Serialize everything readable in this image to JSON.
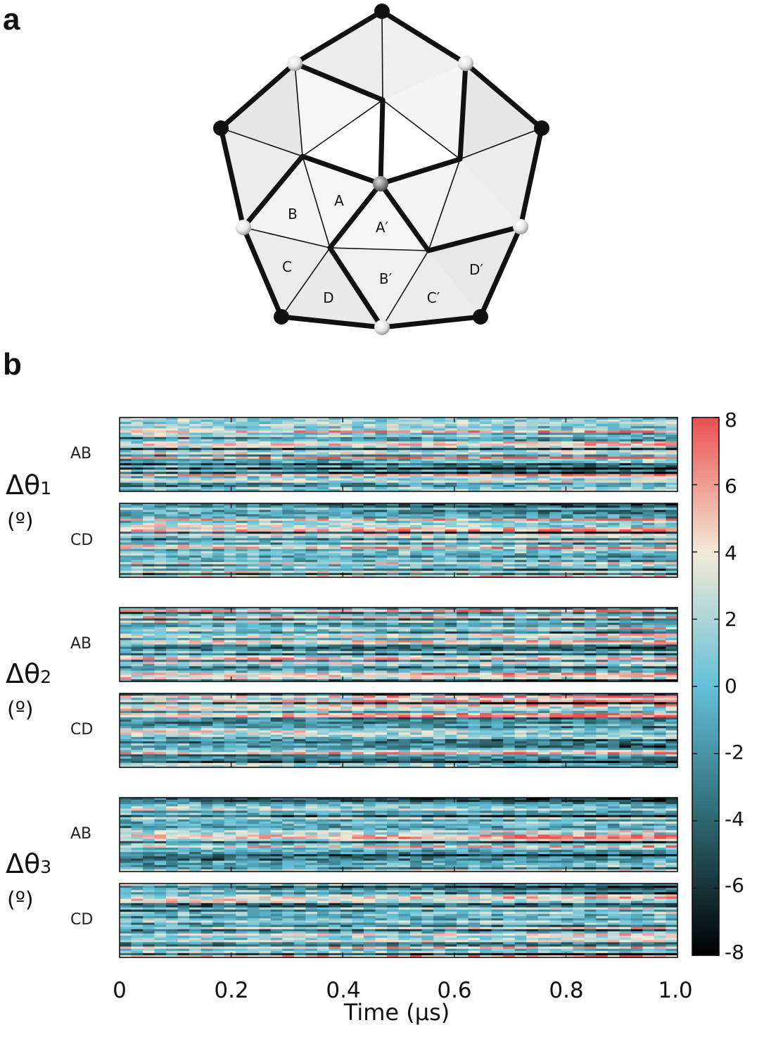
{
  "figure": {
    "panel_a_label": "a",
    "panel_b_label": "b"
  },
  "diagram": {
    "triangle_labels": [
      "A",
      "B",
      "C",
      "D",
      "A′",
      "B′",
      "C′",
      "D′"
    ]
  },
  "rows": [
    {
      "symbol": "Δθ",
      "subscript": "1",
      "unit": "(º)",
      "sublabels": [
        "AB",
        "CD"
      ]
    },
    {
      "symbol": "Δθ",
      "subscript": "2",
      "unit": "(º)",
      "sublabels": [
        "AB",
        "CD"
      ]
    },
    {
      "symbol": "Δθ",
      "subscript": "3",
      "unit": "(º)",
      "sublabels": [
        "AB",
        "CD"
      ]
    }
  ],
  "chart_data": {
    "type": "heatmap",
    "xlabel": "Time (μs)",
    "xlim": [
      0,
      1.0
    ],
    "xticks": [
      "0",
      "0.2",
      "0.4",
      "0.6",
      "0.8",
      "1.0"
    ],
    "colorbar": {
      "range": [
        -8,
        8
      ],
      "ticks": [
        "8",
        "6",
        "4",
        "2",
        "0",
        "-2",
        "-4",
        "-6",
        "-8"
      ],
      "colors": [
        "#000000",
        "#2e6670",
        "#64c0d8",
        "#f3ead6",
        "#ea5050"
      ]
    },
    "panels": [
      "Δθ₁ AB",
      "Δθ₁ CD",
      "Δθ₂ AB",
      "Δθ₂ CD",
      "Δθ₃ AB",
      "Δθ₃ CD"
    ]
  }
}
